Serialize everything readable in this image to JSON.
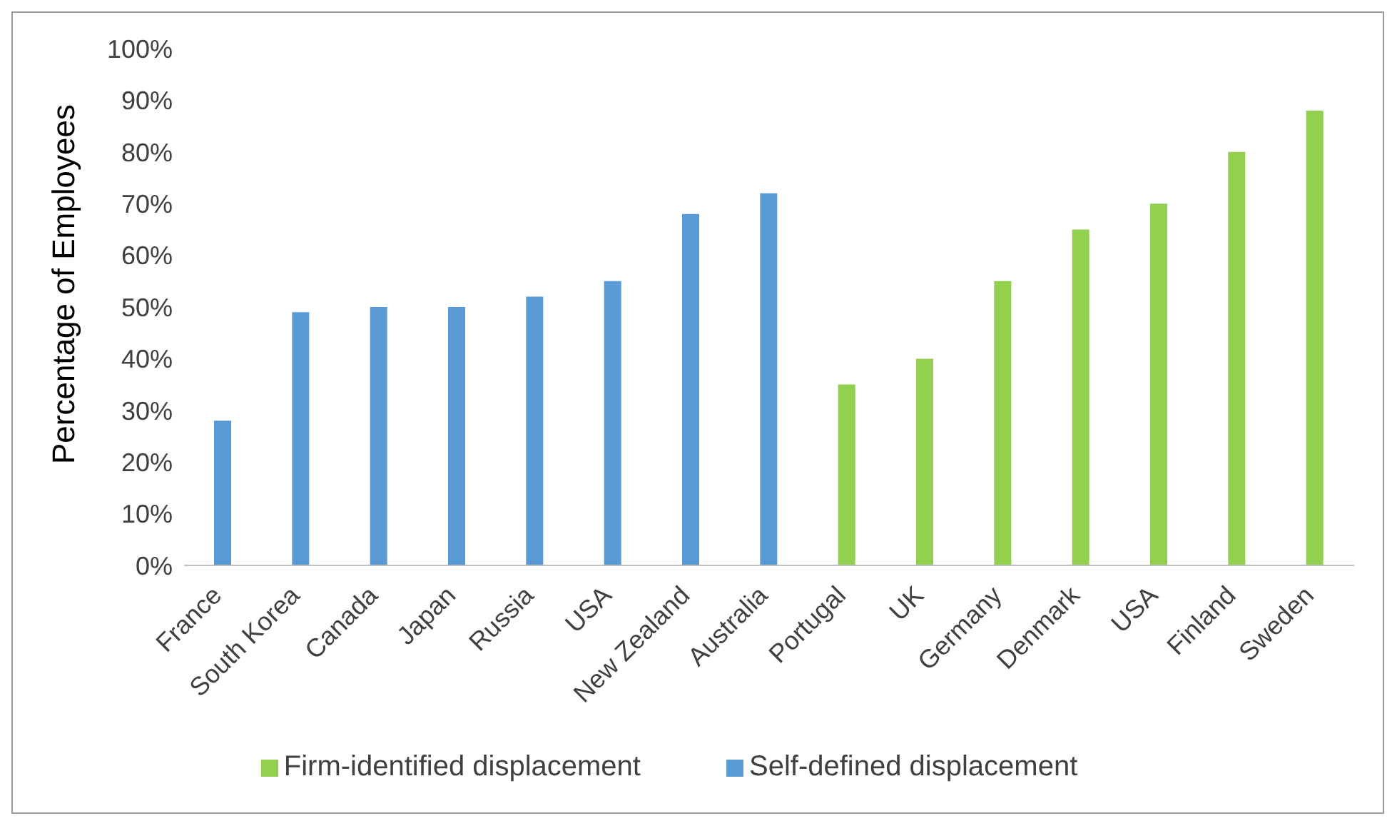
{
  "chart_data": {
    "type": "bar",
    "ylabel": "Percentage of Employees",
    "categories": [
      "France",
      "South Korea",
      "Canada",
      "Japan",
      "Russia",
      "USA",
      "New Zealand",
      "Australia",
      "Portugal",
      "UK",
      "Germany",
      "Denmark",
      "USA",
      "Finland",
      "Sweden"
    ],
    "series": [
      {
        "name": "Self-defined displacement",
        "color": "#5b9bd5",
        "values": [
          28,
          49,
          50,
          50,
          52,
          55,
          68,
          72,
          null,
          null,
          null,
          null,
          null,
          null,
          null
        ]
      },
      {
        "name": "Firm-identified displacement",
        "color": "#92d050",
        "values": [
          null,
          null,
          null,
          null,
          null,
          null,
          null,
          null,
          35,
          40,
          55,
          65,
          70,
          80,
          88
        ]
      }
    ],
    "ylim": [
      0,
      100
    ],
    "yticks": [
      {
        "value": 0,
        "label": "0%"
      },
      {
        "value": 10,
        "label": "10%"
      },
      {
        "value": 20,
        "label": "20%"
      },
      {
        "value": 30,
        "label": "30%"
      },
      {
        "value": 40,
        "label": "40%"
      },
      {
        "value": 50,
        "label": "50%"
      },
      {
        "value": 60,
        "label": "60%"
      },
      {
        "value": 70,
        "label": "70%"
      },
      {
        "value": 80,
        "label": "80%"
      },
      {
        "value": 90,
        "label": "90%"
      },
      {
        "value": 100,
        "label": "100%"
      }
    ],
    "grid": false,
    "legend": "bottom"
  }
}
